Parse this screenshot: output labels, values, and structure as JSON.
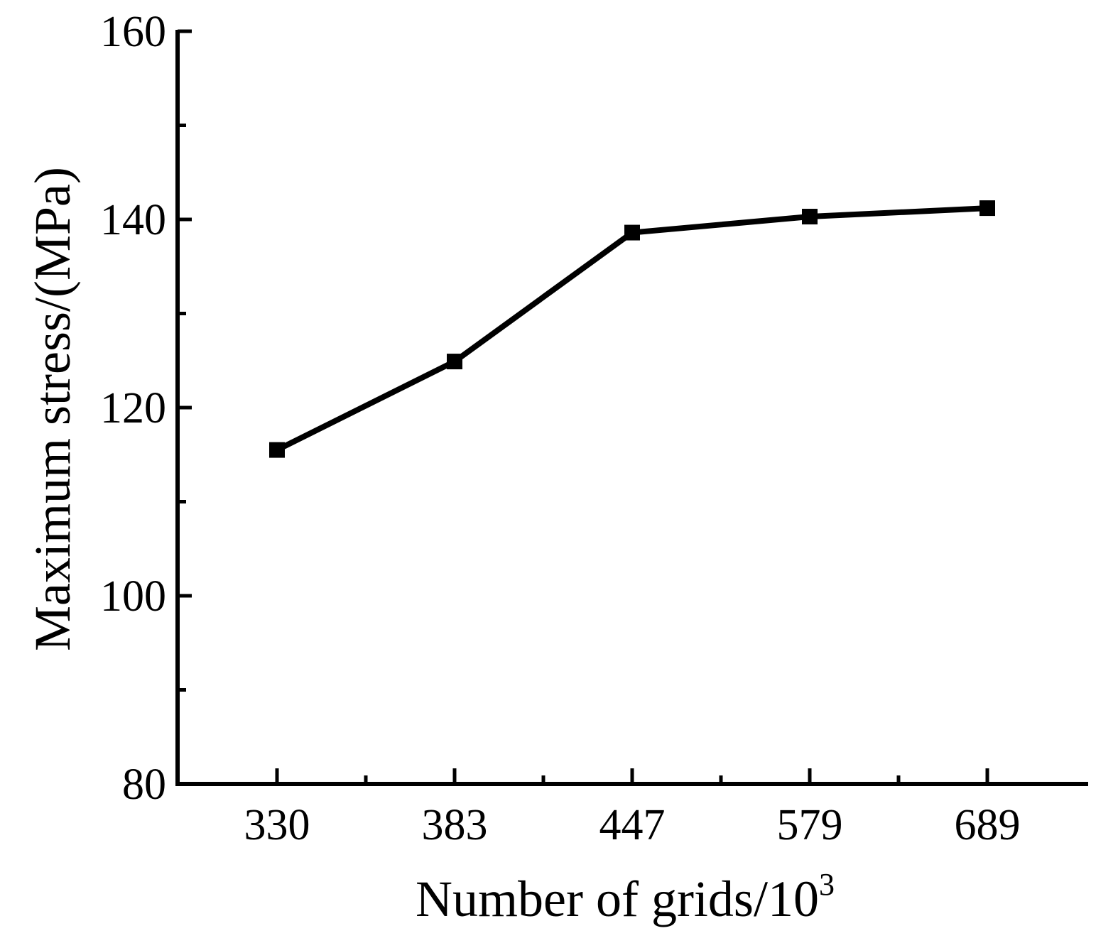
{
  "chart_data": {
    "type": "line",
    "title": "",
    "xlabel": "Number of grids/10",
    "xlabel_superscript": "3",
    "ylabel": "Maximum stress/(MPa)",
    "categories": [
      "330",
      "383",
      "447",
      "579",
      "689"
    ],
    "series": [
      {
        "values": [
          115.5,
          124.9,
          138.6,
          140.3,
          141.2
        ],
        "marker": "square",
        "color": "#000000"
      }
    ],
    "ylim": [
      80,
      160
    ],
    "yticks": [
      "80",
      "100",
      "120",
      "140",
      "160"
    ],
    "grid": false,
    "legend": "none"
  }
}
